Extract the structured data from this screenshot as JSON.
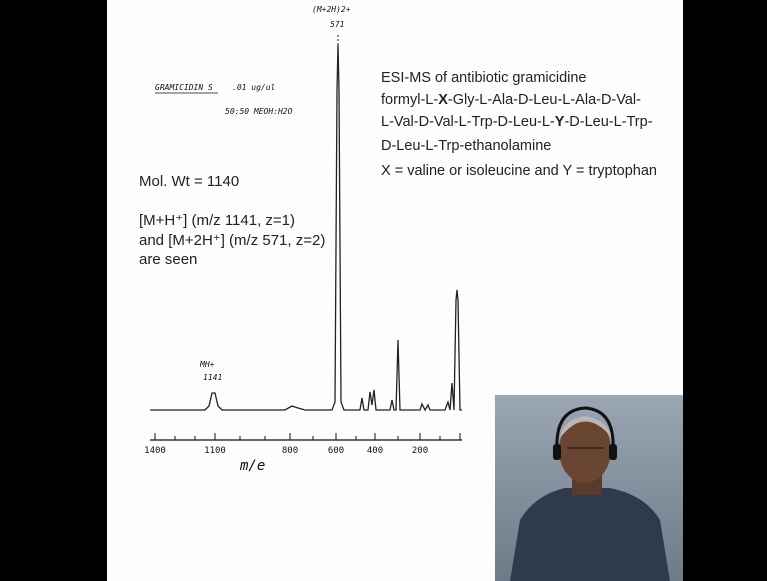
{
  "slide": {
    "spectrum": {
      "sample_label": "GRAMICIDIN S",
      "concentration": ".01 ug/ul",
      "solvent": "50:50 MEOH:H2O",
      "peak_main_label": "(M+2H)2+",
      "peak_main_mz": "571",
      "peak_small_label": "MH+",
      "peak_small_mz": "1141",
      "axis_ticks": [
        "1400",
        "1100",
        "800",
        "600",
        "400",
        "200"
      ],
      "axis_title": "m/e"
    },
    "description": {
      "heading": "ESI-MS of antibiotic gramicidine",
      "line1": [
        "formyl-L-",
        "X",
        "-Gly-L-Ala-D-Leu-L-Ala-D-Val-"
      ],
      "line2": [
        "L-Val-D-Val-L-Trp-D-Leu-L-",
        "Y",
        "-D-Leu-L-Trp-"
      ],
      "line3": "D-Leu-L-Trp-ethanolamine",
      "line4": "X = valine or isoleucine and Y = tryptophan"
    },
    "notes": {
      "mol_wt": "Mol. Wt = 1140",
      "ions_line1": "[M+H⁺] (m/z 1141, z=1)",
      "ions_line2": "and [M+2H⁺] (m/z 571, z=2)",
      "ions_line3": "are seen"
    }
  }
}
